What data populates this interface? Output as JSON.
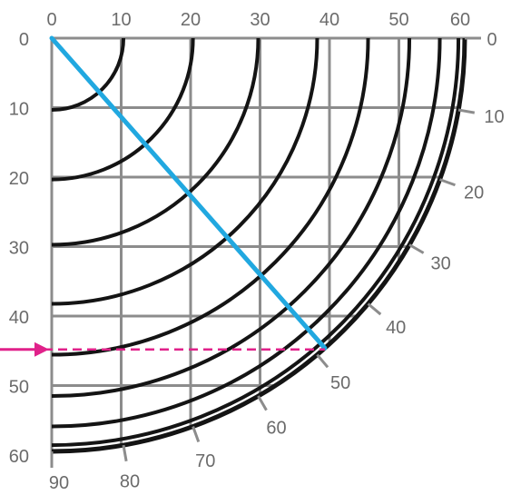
{
  "colors": {
    "grid": "#8c8c8c",
    "arc": "#141414",
    "line": "#21a8e0",
    "dashed": "#e0218a",
    "text": "#6b6b6b"
  },
  "top_labels": [
    "0",
    "10",
    "20",
    "30",
    "40",
    "50",
    "60"
  ],
  "left_labels": [
    "0",
    "10",
    "20",
    "30",
    "40",
    "50",
    "60"
  ],
  "rim_labels": [
    "0",
    "10",
    "20",
    "30",
    "40",
    "50",
    "60",
    "70",
    "80",
    "90"
  ],
  "blue_line": {
    "from_deg": 0,
    "to_deg": 48.6
  },
  "dashed_line_value": 44.8,
  "arrow_icon": "right-arrow-icon"
}
